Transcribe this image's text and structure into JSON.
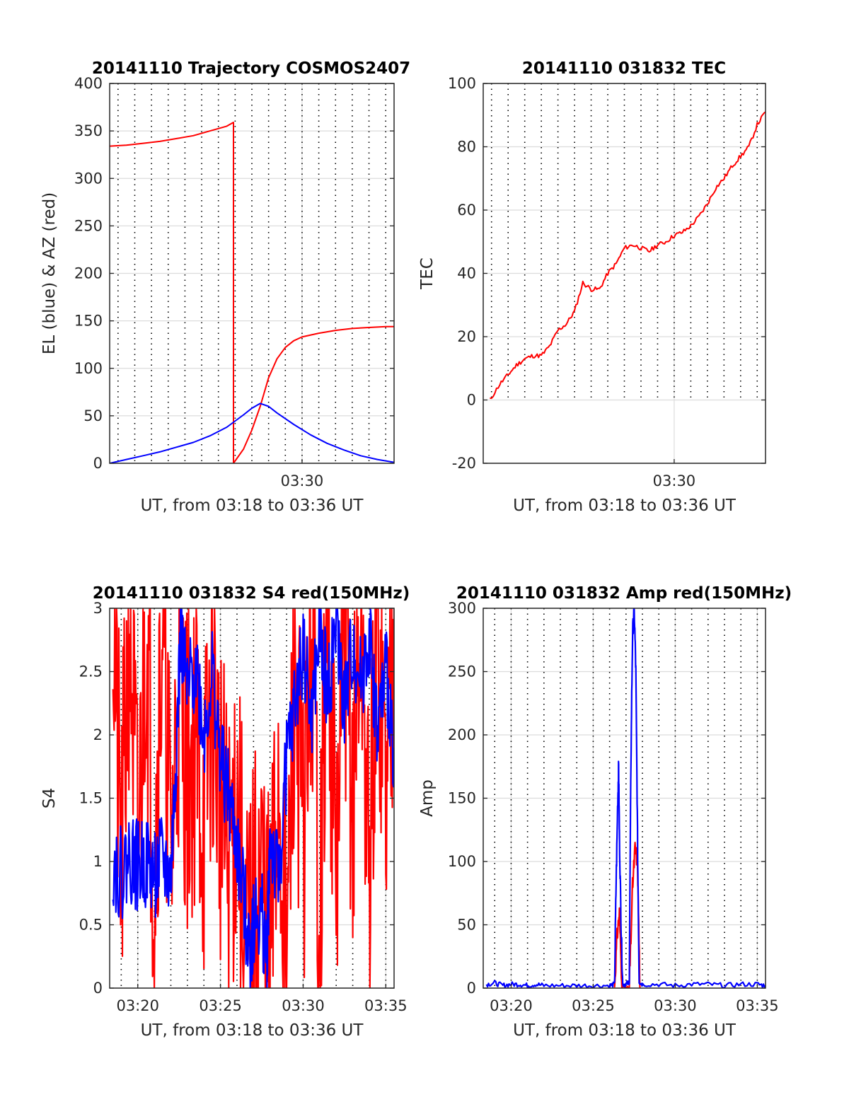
{
  "figure": {
    "colors": {
      "red": "#ff0000",
      "blue": "#0000ff",
      "grid": "#dcdcdc",
      "axis": "#262626"
    }
  },
  "chart_data": [
    {
      "type": "line",
      "title": "20141110 Trajectory COSMOS2407",
      "xlabel": "UT, from 03:18 to 03:36 UT",
      "ylabel": "EL (blue) & AZ (red)",
      "xlim": [
        18.5,
        35.5
      ],
      "ylim": [
        0,
        400
      ],
      "yticks": [
        0,
        50,
        100,
        150,
        200,
        250,
        300,
        350,
        400
      ],
      "ytick_labels": [
        "0",
        "50",
        "100",
        "150",
        "200",
        "250",
        "300",
        "350",
        "400"
      ],
      "xticks": [
        30
      ],
      "xtick_labels": [
        "03:30"
      ],
      "minor_xgrid": "every 0.5 min, dotted",
      "series": [
        {
          "color": "red",
          "x": [
            18.5,
            19.5,
            20.5,
            21.5,
            22.5,
            23.5,
            24.5,
            25.5,
            25.9,
            25.9,
            26.5,
            27.0,
            27.5,
            28.0,
            28.5,
            29.0,
            29.5,
            30.0,
            31.0,
            32.0,
            33.0,
            34.0,
            35.0,
            35.5
          ],
          "y": [
            334,
            335,
            337,
            339,
            342,
            345,
            350,
            355,
            359,
            0,
            15,
            35,
            60,
            90,
            110,
            122,
            129,
            133,
            137,
            140,
            142,
            143,
            144,
            144
          ]
        },
        {
          "color": "blue",
          "x": [
            18.5,
            19.5,
            20.5,
            21.5,
            22.5,
            23.5,
            24.5,
            25.5,
            26.5,
            27.0,
            27.5,
            28.0,
            28.5,
            29.5,
            30.5,
            31.5,
            32.5,
            33.5,
            34.5,
            35.5
          ],
          "y": [
            0,
            4,
            8,
            12,
            17,
            22,
            29,
            38,
            51,
            58,
            63,
            60,
            53,
            41,
            30,
            21,
            14,
            8,
            4,
            1
          ]
        }
      ]
    },
    {
      "type": "line",
      "title": "20141110 031832 TEC",
      "xlabel": "UT, from 03:18 to 03:36 UT",
      "ylabel": "TEC",
      "xlim": [
        18.5,
        35.5
      ],
      "ylim": [
        -20,
        100
      ],
      "yticks": [
        -20,
        0,
        20,
        40,
        60,
        80,
        100
      ],
      "ytick_labels": [
        "-20",
        "0",
        "20",
        "40",
        "60",
        "80",
        "100"
      ],
      "xticks": [
        30
      ],
      "xtick_labels": [
        "03:30"
      ],
      "minor_xgrid": "every 0.5 min, dotted, above TEC = 0",
      "series": [
        {
          "color": "red",
          "x": [
            18.9,
            19.5,
            20.0,
            20.5,
            21.0,
            21.5,
            22.0,
            22.5,
            23.0,
            23.5,
            24.0,
            24.5,
            25.0,
            25.5,
            26.0,
            26.5,
            27.0,
            27.5,
            28.0,
            28.5,
            29.0,
            29.5,
            30.0,
            30.5,
            31.0,
            31.5,
            32.0,
            32.5,
            33.0,
            33.5,
            34.0,
            34.5,
            35.0,
            35.5
          ],
          "y": [
            0,
            5,
            8,
            11,
            13,
            14,
            14,
            17,
            22,
            24,
            28,
            37,
            35,
            35,
            40,
            43,
            48,
            49,
            48,
            47,
            49,
            50,
            52,
            53,
            55,
            58,
            62,
            67,
            70,
            74,
            77,
            80,
            87,
            91
          ]
        }
      ]
    },
    {
      "type": "line",
      "title": "20141110 031832 S4 red(150MHz)",
      "xlabel": "UT, from 03:18 to 03:36 UT",
      "ylabel": "S4",
      "xlim": [
        18.3,
        35.5
      ],
      "ylim": [
        0,
        3
      ],
      "yticks": [
        0,
        0.5,
        1,
        1.5,
        2,
        2.5,
        3
      ],
      "ytick_labels": [
        "0",
        "0.5",
        "1",
        "1.5",
        "2",
        "2.5",
        "3"
      ],
      "xticks": [
        20,
        25,
        30,
        35
      ],
      "xtick_labels": [
        "03:20",
        "03:25",
        "03:30",
        "03:35"
      ],
      "minor_xgrid": "every 0.5 min, dotted",
      "series": [
        {
          "color": "red",
          "x": [
            18.5,
            19.0,
            19.5,
            20.0,
            20.5,
            21.0,
            21.5,
            22.0,
            22.5,
            23.0,
            23.5,
            24.0,
            24.5,
            25.0,
            25.5,
            26.0,
            26.5,
            27.0,
            27.5,
            28.0,
            28.5,
            29.0,
            29.5,
            30.0,
            30.5,
            31.0,
            31.5,
            32.0,
            32.5,
            33.0,
            33.5,
            34.0,
            34.5,
            35.0,
            35.5
          ],
          "y": [
            3,
            0.9,
            3,
            1.0,
            3,
            0.9,
            3,
            1.0,
            2.5,
            1.7,
            2.0,
            1.3,
            2.4,
            1.5,
            0.9,
            1.6,
            0.2,
            0.5,
            0.9,
            0.15,
            1.7,
            0.1,
            2.6,
            1.1,
            3,
            0.6,
            3,
            0.8,
            3,
            1.4,
            3,
            0.7,
            3,
            1.5,
            3
          ]
        },
        {
          "color": "blue",
          "x": [
            18.5,
            19.0,
            19.5,
            20.0,
            20.5,
            21.0,
            21.5,
            22.0,
            22.3,
            22.6,
            23.0,
            23.5,
            24.0,
            24.5,
            25.0,
            25.5,
            26.0,
            26.5,
            26.8,
            27.0,
            27.5,
            27.8,
            28.0,
            28.5,
            29.0,
            29.5,
            30.0,
            30.5,
            31.0,
            31.5,
            32.0,
            32.5,
            33.0,
            33.5,
            34.0,
            34.5,
            35.0,
            35.5
          ],
          "y": [
            1.0,
            0.9,
            1.05,
            0.95,
            1.0,
            0.9,
            1.0,
            0.85,
            1.8,
            2.8,
            2.3,
            2.6,
            2.0,
            2.5,
            1.8,
            1.5,
            1.1,
            0.6,
            0.3,
            0.5,
            0.6,
            0.2,
            1.2,
            0.8,
            1.8,
            2.2,
            2.7,
            2.1,
            2.8,
            2.3,
            2.9,
            2.2,
            2.7,
            2.4,
            2.8,
            2.0,
            2.5,
            1.9
          ]
        }
      ]
    },
    {
      "type": "line",
      "title": "20141110 031832 Amp red(150MHz)",
      "xlabel": "UT, from 03:18 to 03:36 UT",
      "ylabel": "Amp",
      "xlim": [
        18.3,
        35.5
      ],
      "ylim": [
        0,
        300
      ],
      "yticks": [
        0,
        50,
        100,
        150,
        200,
        250,
        300
      ],
      "ytick_labels": [
        "0",
        "50",
        "100",
        "150",
        "200",
        "250",
        "300"
      ],
      "xticks": [
        20,
        25,
        30,
        35
      ],
      "xtick_labels": [
        "03:20",
        "03:25",
        "03:30",
        "03:35"
      ],
      "minor_xgrid": "every 0.5 min, dotted",
      "series": [
        {
          "color": "red",
          "x": [
            26.3,
            26.45,
            26.6,
            26.75,
            27.2,
            27.4,
            27.55,
            27.7,
            27.85
          ],
          "y": [
            0,
            40,
            60,
            0,
            0,
            80,
            110,
            100,
            0
          ]
        },
        {
          "color": "blue",
          "x": [
            18.5,
            19.0,
            19.5,
            20.0,
            20.5,
            21.0,
            21.5,
            22.0,
            23.0,
            24.0,
            25.0,
            26.0,
            26.3,
            26.4,
            26.5,
            26.55,
            26.6,
            26.7,
            26.8,
            27.0,
            27.2,
            27.3,
            27.4,
            27.5,
            27.6,
            27.7,
            27.8,
            28.0,
            29.0,
            30.0,
            31.0,
            32.0,
            33.0,
            34.0,
            35.0,
            35.5
          ],
          "y": [
            3,
            4,
            2,
            3,
            3,
            2,
            3,
            2,
            2,
            2,
            2,
            2,
            3,
            85,
            150,
            175,
            120,
            50,
            3,
            3,
            5,
            180,
            280,
            300,
            250,
            120,
            5,
            3,
            3,
            2,
            3,
            3,
            2,
            3,
            3,
            2
          ]
        }
      ]
    }
  ]
}
